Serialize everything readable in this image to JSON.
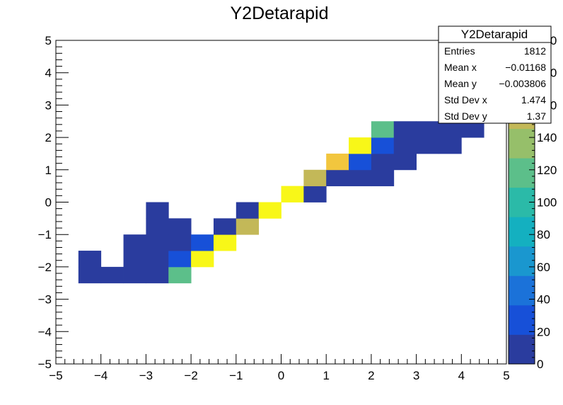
{
  "chart_data": {
    "type": "heatmap",
    "title": "Y2Detarapid",
    "xlabel": "",
    "ylabel": "",
    "xlim": [
      -5,
      5
    ],
    "ylim": [
      -5,
      5
    ],
    "xticks": [
      "−5",
      "−4",
      "−3",
      "−2",
      "−1",
      "0",
      "1",
      "2",
      "3",
      "4",
      "5"
    ],
    "yticks": [
      "−5",
      "−4",
      "−3",
      "−2",
      "−1",
      "0",
      "1",
      "2",
      "3",
      "4",
      "5"
    ],
    "zticks": [
      "0",
      "20",
      "40",
      "60",
      "80",
      "100",
      "120",
      "140",
      "160",
      "180",
      "200"
    ],
    "zlim": [
      0,
      200
    ],
    "bin_width": 0.5,
    "bins": [
      {
        "x": -4.5,
        "y": -2.5,
        "z": 5
      },
      {
        "x": -4.0,
        "y": -2.5,
        "z": 5
      },
      {
        "x": -3.5,
        "y": -2.5,
        "z": 5
      },
      {
        "x": -3.0,
        "y": -2.5,
        "z": 5
      },
      {
        "x": -2.5,
        "y": -2.5,
        "z": 125
      },
      {
        "x": -4.5,
        "y": -2.0,
        "z": 5
      },
      {
        "x": -3.5,
        "y": -2.0,
        "z": 5
      },
      {
        "x": -3.0,
        "y": -2.0,
        "z": 5
      },
      {
        "x": -2.5,
        "y": -2.0,
        "z": 25
      },
      {
        "x": -2.0,
        "y": -2.0,
        "z": 190
      },
      {
        "x": -3.5,
        "y": -1.5,
        "z": 5
      },
      {
        "x": -3.0,
        "y": -1.5,
        "z": 5
      },
      {
        "x": -2.5,
        "y": -1.5,
        "z": 5
      },
      {
        "x": -2.0,
        "y": -1.5,
        "z": 25
      },
      {
        "x": -1.5,
        "y": -1.5,
        "z": 198
      },
      {
        "x": -3.0,
        "y": -1.0,
        "z": 5
      },
      {
        "x": -2.5,
        "y": -1.0,
        "z": 5
      },
      {
        "x": -1.5,
        "y": -1.0,
        "z": 5
      },
      {
        "x": -1.0,
        "y": -1.0,
        "z": 150
      },
      {
        "x": -3.0,
        "y": -0.5,
        "z": 5
      },
      {
        "x": -1.0,
        "y": -0.5,
        "z": 5
      },
      {
        "x": -0.5,
        "y": -0.5,
        "z": 190
      },
      {
        "x": 0.0,
        "y": 0.0,
        "z": 198
      },
      {
        "x": 0.5,
        "y": 0.0,
        "z": 5
      },
      {
        "x": 0.5,
        "y": 0.5,
        "z": 150
      },
      {
        "x": 1.0,
        "y": 0.5,
        "z": 5
      },
      {
        "x": 1.5,
        "y": 0.5,
        "z": 5
      },
      {
        "x": 2.0,
        "y": 0.5,
        "z": 5
      },
      {
        "x": 1.0,
        "y": 1.0,
        "z": 175
      },
      {
        "x": 1.5,
        "y": 1.0,
        "z": 25
      },
      {
        "x": 2.0,
        "y": 1.0,
        "z": 5
      },
      {
        "x": 2.5,
        "y": 1.0,
        "z": 5
      },
      {
        "x": 1.5,
        "y": 1.5,
        "z": 198
      },
      {
        "x": 2.0,
        "y": 1.5,
        "z": 30
      },
      {
        "x": 2.5,
        "y": 1.5,
        "z": 5
      },
      {
        "x": 3.0,
        "y": 1.5,
        "z": 5
      },
      {
        "x": 3.5,
        "y": 1.5,
        "z": 5
      },
      {
        "x": 2.0,
        "y": 2.0,
        "z": 125
      },
      {
        "x": 2.5,
        "y": 2.0,
        "z": 5
      },
      {
        "x": 3.0,
        "y": 2.0,
        "z": 5
      },
      {
        "x": 3.5,
        "y": 2.0,
        "z": 5
      },
      {
        "x": 4.0,
        "y": 2.0,
        "z": 5
      }
    ]
  },
  "stats": {
    "title": "Y2Detarapid",
    "rows": [
      {
        "label": "Entries",
        "value": "1812"
      },
      {
        "label": "Mean x",
        "value": "−0.01168"
      },
      {
        "label": "Mean y",
        "value": "−0.003806"
      },
      {
        "label": "Std Dev x",
        "value": "1.474"
      },
      {
        "label": "Std Dev y",
        "value": "1.37"
      }
    ]
  },
  "colors": {
    "palette": [
      "#2a3c9e",
      "#1750d8",
      "#1b72d9",
      "#1a97cf",
      "#14b0c0",
      "#2bbaa8",
      "#5cbf8a",
      "#96bf6a",
      "#c3b858",
      "#f2c63e",
      "#f8f718"
    ]
  }
}
